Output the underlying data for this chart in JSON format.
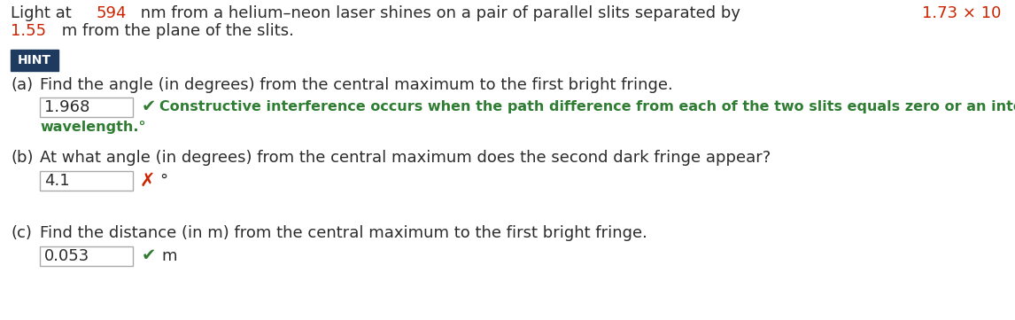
{
  "bg_color": "#ffffff",
  "text_color": "#2b2b2b",
  "red_color": "#cc2200",
  "green_color": "#2e7d32",
  "hint_bg": "#1e3a5f",
  "hint_text": "#ffffff",
  "font_size_main": 13,
  "font_size_feedback": 11.5,
  "font_size_hint": 10,
  "hint_label": "HINT",
  "part_a_label": "(a)",
  "part_a_question": "Find the angle (in degrees) from the central maximum to the first bright fringe.",
  "part_a_answer": "1.968",
  "part_a_feedback_line1": "Constructive interference occurs when the path difference from each of the two slits equals zero or an integral multiple of the",
  "part_a_feedback_line2": "wavelength.°",
  "part_b_label": "(b)",
  "part_b_question": "At what angle (in degrees) from the central maximum does the second dark fringe appear?",
  "part_b_answer": "4.1",
  "part_b_unit": "°",
  "part_c_label": "(c)",
  "part_c_question": "Find the distance (in m) from the central maximum to the first bright fringe.",
  "part_c_answer": "0.053",
  "part_c_unit": "m"
}
